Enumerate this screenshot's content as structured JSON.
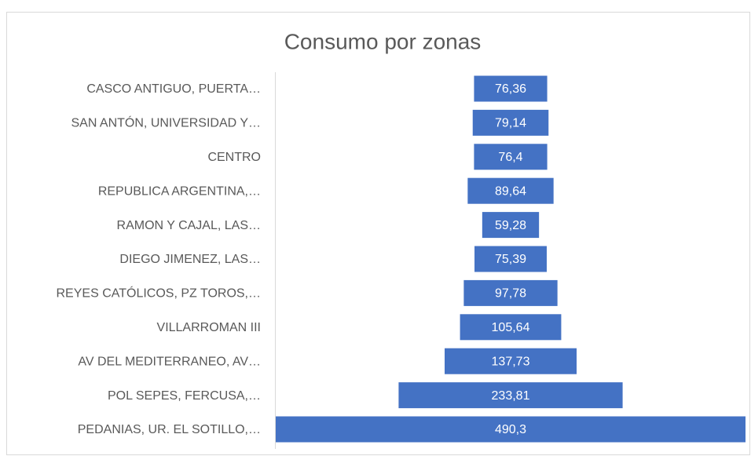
{
  "chart_data": {
    "type": "funnel",
    "title": "Consumo por zonas",
    "categories": [
      "CASCO ANTIGUO, PUERTA…",
      "SAN ANTÓN, UNIVERSIDAD Y…",
      "CENTRO",
      "REPUBLICA ARGENTINA,…",
      "RAMON Y CAJAL, LAS…",
      "DIEGO JIMENEZ, LAS…",
      "REYES CATÓLICOS, PZ TOROS,…",
      "VILLARROMAN III",
      "AV DEL MEDITERRANEO, AV…",
      "POL SEPES, FERCUSA,…",
      "PEDANIAS, UR. EL SOTILLO,…"
    ],
    "values": [
      76.36,
      79.14,
      76.4,
      89.64,
      59.28,
      75.39,
      97.78,
      105.64,
      137.73,
      233.81,
      490.3
    ],
    "value_labels": [
      "76,36",
      "79,14",
      "76,4",
      "89,64",
      "59,28",
      "75,39",
      "97,78",
      "105,64",
      "137,73",
      "233,81",
      "490,3"
    ],
    "color": "#4472c4"
  }
}
